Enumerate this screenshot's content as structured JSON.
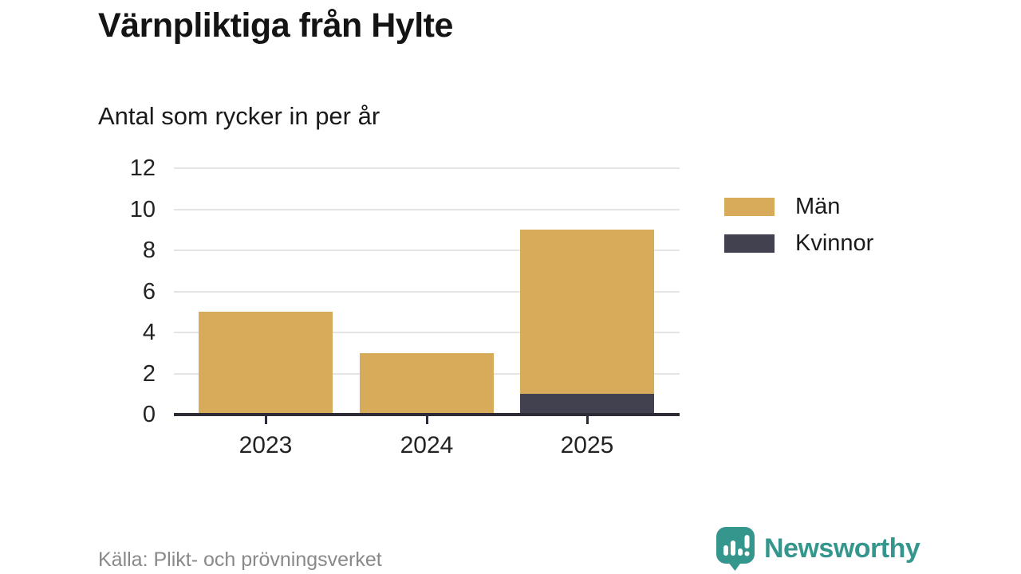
{
  "title": "Värnpliktiga från Hylte",
  "subtitle": "Antal som rycker in per år",
  "source": "Källa: Plikt- och prövningsverket",
  "brand": {
    "name": "Newsworthy",
    "color": "#35968e"
  },
  "colors": {
    "men": "#d8ab5a",
    "women": "#42414f",
    "grid": "#e4e4e4",
    "axis": "#2c2b36",
    "text": "#232323",
    "source_text": "#898989"
  },
  "chart_data": {
    "type": "bar",
    "stacked": true,
    "title": "Värnpliktiga från Hylte",
    "subtitle": "Antal som rycker in per år",
    "categories": [
      "2023",
      "2024",
      "2025"
    ],
    "series": [
      {
        "name": "Män",
        "color": "#d8ab5a",
        "values": [
          5,
          3,
          8
        ]
      },
      {
        "name": "Kvinnor",
        "color": "#42414f",
        "values": [
          0,
          0,
          1
        ]
      }
    ],
    "xlabel": "",
    "ylabel": "",
    "ylim": [
      0,
      12
    ],
    "yticks": [
      0,
      2,
      4,
      6,
      8,
      10,
      12
    ],
    "grid": true,
    "legend_position": "right"
  }
}
